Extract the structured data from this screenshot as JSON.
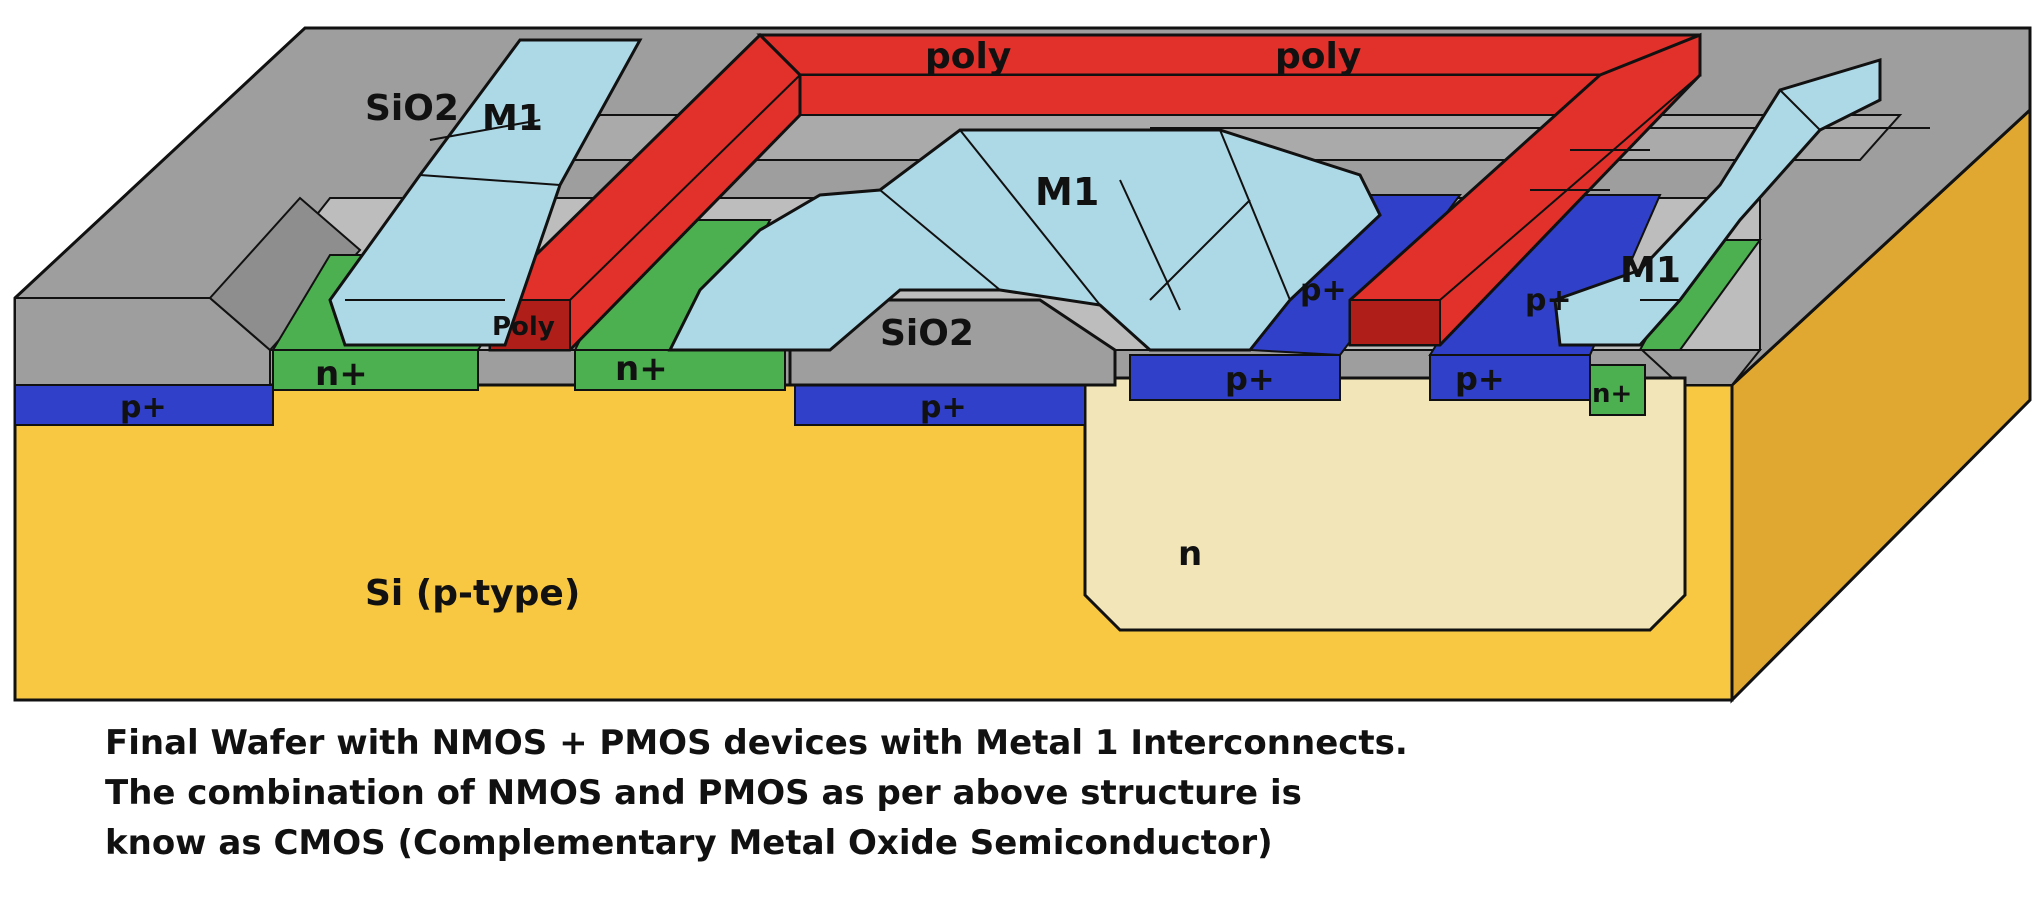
{
  "colors": {
    "substrate": "#F8C842",
    "well": "#F2E6B8",
    "oxide": "#9E9E9E",
    "oxide_light": "#C8C8C8",
    "ndiff": "#4CAF50",
    "pdiff": "#3040C8",
    "poly": "#E2302A",
    "poly_dark": "#B01E1A",
    "metal1": "#ADD8E6"
  },
  "labels": {
    "sio2_left": "SiO2",
    "sio2_center": "SiO2",
    "m1_left": "M1",
    "m1_center": "M1",
    "m1_right": "M1",
    "poly_1": "poly",
    "poly_2": "poly",
    "poly_gate": "Poly",
    "nplus_1": "n+",
    "nplus_2": "n+",
    "nplus_3": "n+",
    "pplus_1": "p+",
    "pplus_2": "p+",
    "pplus_3": "p+",
    "pplus_4": "p+",
    "pplus_5": "p+",
    "pplus_6": "p+",
    "nwell": "n",
    "substrate": "Si (p-type)"
  },
  "caption": {
    "line1": "Final Wafer with NMOS + PMOS devices with Metal 1 Interconnects.",
    "line2": "The combination of NMOS and PMOS as per above structure is",
    "line3": "know as CMOS (Complementary Metal Oxide Semiconductor)"
  }
}
